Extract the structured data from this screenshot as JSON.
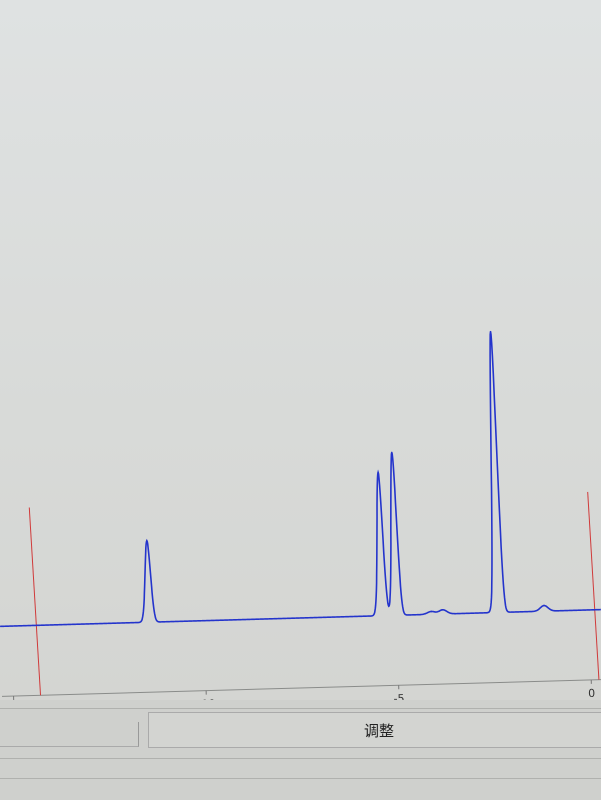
{
  "chart_data": {
    "type": "line",
    "title": "",
    "xlabel": "",
    "ylabel": "",
    "xlim": [
      -15.3,
      0.3
    ],
    "ylim": [
      0,
      220
    ],
    "x_ticks": [
      -15,
      -10,
      -5,
      0
    ],
    "x_tick_labels": [
      "-15",
      "-10",
      "-5",
      "0"
    ],
    "grid": false,
    "series": [
      {
        "color": "#2434cc",
        "peaks": [
          {
            "x": -11.43,
            "y": 29
          },
          {
            "x": -5.38,
            "y": 51
          },
          {
            "x": -5.01,
            "y": 58
          },
          {
            "x": -4.1,
            "y": 1
          },
          {
            "x": -3.8,
            "y": 1.5
          },
          {
            "x": -2.36,
            "y": 100
          },
          {
            "x": -1.17,
            "y": 2
          }
        ]
      }
    ],
    "markers": [
      {
        "x": -14.3,
        "color": "#d03a3a"
      },
      {
        "x": 0.2,
        "color": "#d03a3a"
      }
    ]
  },
  "controls": {
    "adjust_label": "调整"
  }
}
